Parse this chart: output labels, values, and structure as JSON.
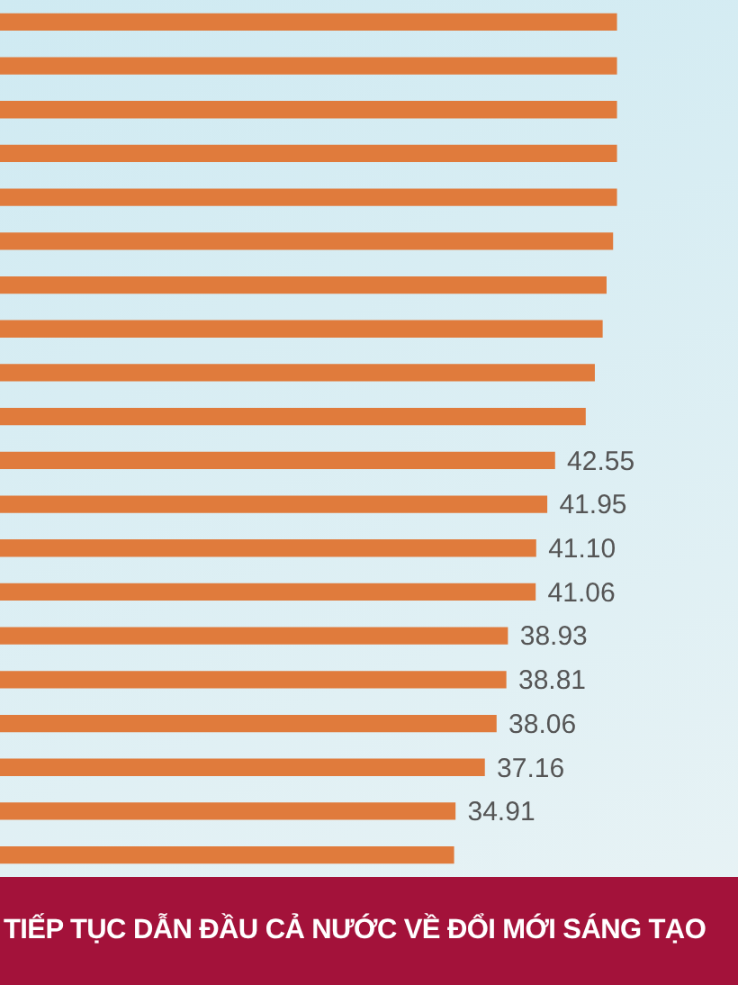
{
  "chart_data": {
    "type": "bar",
    "orientation": "horizontal",
    "categories": [
      null,
      null,
      null,
      null,
      null,
      null,
      null,
      null,
      null,
      null,
      null,
      null,
      null,
      null,
      null,
      null,
      null,
      null,
      null,
      null
    ],
    "values": [
      47.3,
      47.3,
      47.3,
      47.3,
      47.3,
      47.0,
      46.5,
      46.2,
      45.6,
      44.9,
      42.55,
      41.95,
      41.1,
      41.06,
      38.93,
      38.81,
      38.06,
      37.16,
      34.91,
      34.8
    ],
    "value_labels": [
      null,
      null,
      null,
      null,
      null,
      null,
      null,
      null,
      null,
      null,
      "42.55",
      "41.95",
      "41.10",
      "41.06",
      "38.93",
      "38.81",
      "38.06",
      "37.16",
      "34.91",
      null
    ],
    "color": "#e07b3c",
    "annotations": [
      "TIẾP TỤC DẪN ĐẦU CẢ NƯỚC VỀ ĐỔI MỚI SÁNG TẠO"
    ]
  }
}
